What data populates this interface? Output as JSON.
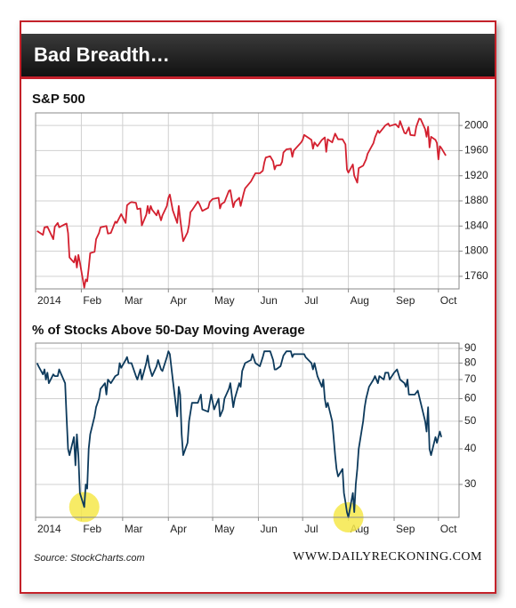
{
  "header": {
    "title": "Bad Breadth…"
  },
  "chart_data": [
    {
      "type": "line",
      "title": "S&P 500",
      "color": "#d3202f",
      "grid": true,
      "xlim": [
        1,
        288
      ],
      "ylim": [
        1740,
        2020
      ],
      "xticks": [
        {
          "value": 1,
          "label": "2014"
        },
        {
          "value": 32,
          "label": "Feb"
        },
        {
          "value": 60,
          "label": "Mar"
        },
        {
          "value": 91,
          "label": "Apr"
        },
        {
          "value": 121,
          "label": "May"
        },
        {
          "value": 152,
          "label": "Jun"
        },
        {
          "value": 182,
          "label": "Jul"
        },
        {
          "value": 213,
          "label": "Aug"
        },
        {
          "value": 244,
          "label": "Sep"
        },
        {
          "value": 274,
          "label": "Oct"
        }
      ],
      "yticks": [
        1760,
        1800,
        1840,
        1880,
        1920,
        1960,
        2000
      ],
      "x": [
        2,
        6,
        7,
        9,
        13,
        14,
        16,
        17,
        21,
        22,
        23,
        24,
        27,
        28,
        29,
        30,
        31,
        34,
        35,
        36,
        37,
        38,
        41,
        42,
        44,
        45,
        49,
        50,
        52,
        55,
        56,
        59,
        62,
        63,
        65,
        66,
        69,
        70,
        72,
        73,
        76,
        77,
        78,
        79,
        80,
        83,
        84,
        86,
        87,
        90,
        91,
        92,
        94,
        97,
        98,
        99,
        100,
        101,
        104,
        105,
        106,
        107,
        111,
        112,
        114,
        118,
        119,
        121,
        125,
        126,
        127,
        129,
        132,
        133,
        135,
        136,
        139,
        140,
        142,
        143,
        147,
        149,
        150,
        153,
        155,
        156,
        157,
        160,
        162,
        163,
        164,
        167,
        168,
        169,
        171,
        174,
        175,
        176,
        181,
        182,
        183,
        188,
        189,
        190,
        192,
        195,
        197,
        198,
        199,
        202,
        204,
        206,
        209,
        211,
        212,
        213,
        216,
        217,
        219,
        220,
        223,
        225,
        226,
        230,
        231,
        233,
        234,
        237,
        238,
        240,
        241,
        245,
        247,
        248,
        251,
        252,
        254,
        255,
        258,
        259,
        261,
        262,
        265,
        266,
        267,
        268,
        269,
        272,
        273,
        274,
        275,
        276,
        279
      ],
      "values": [
        1832,
        1826,
        1838,
        1839,
        1819,
        1839,
        1845,
        1838,
        1843,
        1844,
        1829,
        1790,
        1782,
        1792,
        1774,
        1794,
        1782,
        1742,
        1755,
        1752,
        1773,
        1797,
        1799,
        1819,
        1829,
        1838,
        1840,
        1828,
        1829,
        1847,
        1845,
        1859,
        1845,
        1873,
        1877,
        1878,
        1877,
        1867,
        1868,
        1841,
        1858,
        1872,
        1860,
        1872,
        1866,
        1857,
        1865,
        1849,
        1857,
        1872,
        1885,
        1890,
        1865,
        1845,
        1872,
        1852,
        1833,
        1816,
        1830,
        1842,
        1862,
        1865,
        1879,
        1875,
        1864,
        1869,
        1878,
        1883,
        1885,
        1868,
        1875,
        1878,
        1896,
        1897,
        1870,
        1878,
        1885,
        1872,
        1892,
        1900,
        1911,
        1920,
        1924,
        1924,
        1928,
        1941,
        1949,
        1951,
        1943,
        1930,
        1936,
        1937,
        1942,
        1957,
        1962,
        1963,
        1950,
        1960,
        1973,
        1977,
        1985,
        1977,
        1963,
        1973,
        1967,
        1977,
        1981,
        1958,
        1978,
        1973,
        1987,
        1978,
        1978,
        1970,
        1930,
        1925,
        1938,
        1920,
        1909,
        1932,
        1936,
        1946,
        1955,
        1972,
        1981,
        1992,
        1988,
        1997,
        2000,
        2003,
        1999,
        2002,
        1997,
        2007,
        1988,
        1987,
        1997,
        1985,
        1984,
        1998,
        2011,
        2010,
        1994,
        1982,
        1998,
        1965,
        1982,
        1977,
        1972,
        1946,
        1967,
        1964,
        1952
      ]
    },
    {
      "type": "line",
      "title": "% of Stocks Above 50-Day Moving Average",
      "color": "#0d3a5c",
      "grid": true,
      "log_scale": true,
      "xlim": [
        1,
        288
      ],
      "ylim": [
        23,
        94
      ],
      "xticks": [
        {
          "value": 1,
          "label": "2014"
        },
        {
          "value": 32,
          "label": "Feb"
        },
        {
          "value": 60,
          "label": "Mar"
        },
        {
          "value": 91,
          "label": "Apr"
        },
        {
          "value": 121,
          "label": "May"
        },
        {
          "value": 152,
          "label": "Jun"
        },
        {
          "value": 182,
          "label": "Jul"
        },
        {
          "value": 213,
          "label": "Aug"
        },
        {
          "value": 244,
          "label": "Sep"
        },
        {
          "value": 274,
          "label": "Oct"
        }
      ],
      "yticks": [
        30,
        40,
        50,
        60,
        70,
        80,
        90
      ],
      "highlight_color": "#f6e84a",
      "highlights": [
        {
          "x": 34,
          "y": 25
        },
        {
          "x": 213,
          "y": 23
        }
      ],
      "x": [
        2,
        3,
        6,
        7,
        8,
        9,
        10,
        13,
        14,
        16,
        17,
        21,
        22,
        23,
        24,
        27,
        28,
        29,
        30,
        31,
        34,
        35,
        36,
        37,
        38,
        41,
        42,
        44,
        45,
        48,
        49,
        50,
        52,
        55,
        57,
        58,
        59,
        62,
        63,
        64,
        66,
        69,
        70,
        72,
        73,
        76,
        77,
        78,
        80,
        83,
        84,
        86,
        87,
        90,
        91,
        92,
        94,
        97,
        98,
        99,
        100,
        101,
        104,
        105,
        107,
        111,
        113,
        114,
        118,
        120,
        122,
        125,
        126,
        128,
        129,
        132,
        133,
        135,
        136,
        139,
        140,
        141,
        143,
        147,
        148,
        150,
        153,
        155,
        156,
        160,
        162,
        163,
        164,
        167,
        169,
        171,
        174,
        175,
        176,
        181,
        183,
        184,
        188,
        189,
        190,
        192,
        195,
        196,
        197,
        198,
        199,
        202,
        203,
        204,
        205,
        206,
        209,
        210,
        211,
        212,
        213,
        216,
        217,
        218,
        219,
        220,
        223,
        224,
        225,
        227,
        230,
        231,
        233,
        234,
        237,
        238,
        240,
        241,
        244,
        246,
        248,
        251,
        252,
        253,
        254,
        258,
        260,
        262,
        265,
        266,
        267,
        268,
        269,
        272,
        273,
        275,
        276
      ],
      "values": [
        80,
        78,
        73,
        76,
        70,
        74,
        68,
        73,
        72,
        72,
        76,
        68,
        52,
        40,
        38,
        44,
        35,
        45,
        38,
        28,
        25,
        30,
        29,
        40,
        45,
        52,
        56,
        60,
        65,
        68,
        62,
        70,
        68,
        72,
        73,
        80,
        77,
        82,
        84,
        80,
        80,
        72,
        70,
        76,
        70,
        80,
        85,
        78,
        72,
        78,
        82,
        76,
        75,
        84,
        88,
        86,
        70,
        52,
        66,
        62,
        45,
        38,
        42,
        50,
        58,
        58,
        62,
        55,
        54,
        62,
        55,
        60,
        52,
        55,
        60,
        65,
        68,
        56,
        60,
        68,
        66,
        75,
        80,
        82,
        86,
        80,
        78,
        84,
        88,
        88,
        82,
        76,
        76,
        78,
        85,
        88,
        88,
        84,
        86,
        86,
        86,
        84,
        80,
        76,
        80,
        72,
        66,
        70,
        60,
        56,
        58,
        50,
        44,
        38,
        34,
        32,
        34,
        28,
        26,
        24,
        23,
        28,
        24,
        30,
        34,
        40,
        50,
        56,
        60,
        66,
        70,
        72,
        68,
        72,
        70,
        74,
        74,
        70,
        74,
        76,
        70,
        68,
        66,
        70,
        62,
        62,
        64,
        58,
        50,
        46,
        56,
        40,
        38,
        44,
        42,
        46,
        44
      ]
    }
  ],
  "footer": {
    "source": "Source: StockCharts.com",
    "site": "WWW.DAILYRECKONING.COM"
  }
}
